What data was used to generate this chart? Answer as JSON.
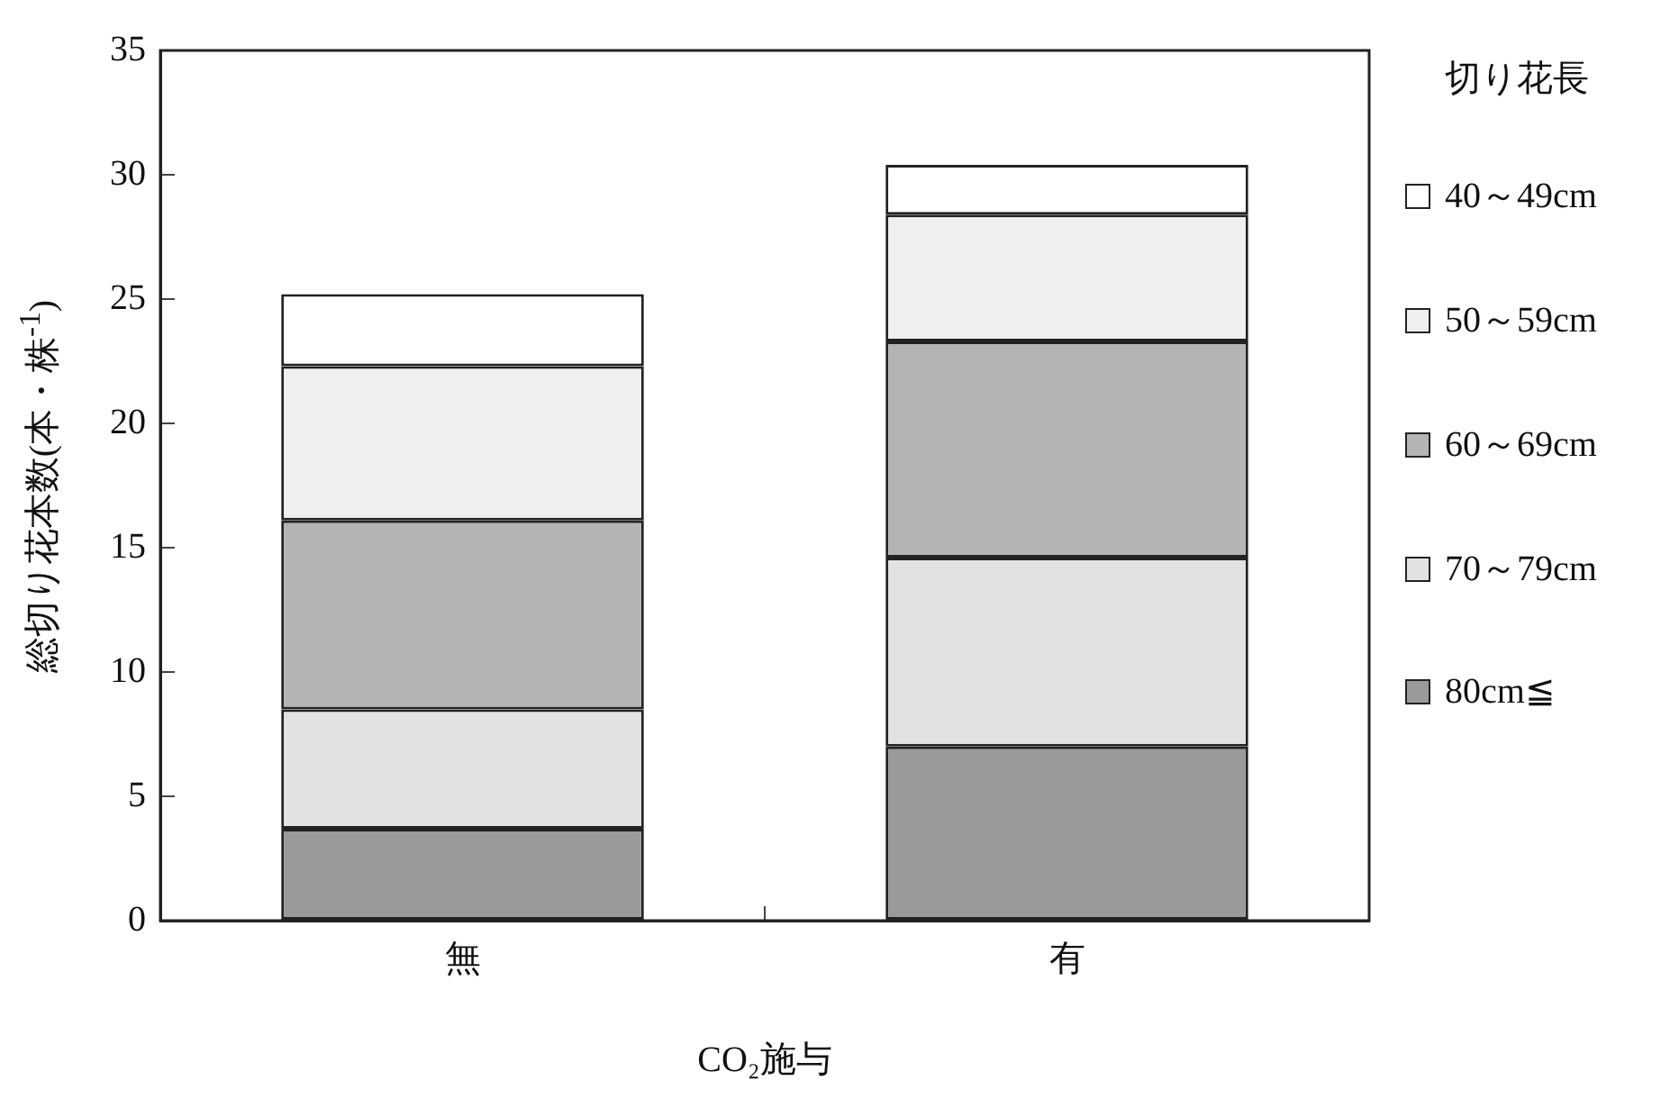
{
  "chart_data": {
    "type": "bar",
    "stacked": true,
    "xlabel": "CO₂施与",
    "ylabel": "総切り花本数(本・株$^{-1}$)",
    "legend_title": "切り花長",
    "legend": "right",
    "categories": [
      "無",
      "有"
    ],
    "ylim": [
      0,
      35
    ],
    "yticks": [
      0,
      5,
      10,
      15,
      20,
      25,
      30,
      35
    ],
    "grid": false,
    "series": [
      {
        "name": "80cm≦",
        "color": "#9a9a9a",
        "values": [
          3.7,
          7.0
        ]
      },
      {
        "name": "70～79cm",
        "color": "#e2e2e2",
        "values": [
          4.8,
          7.6
        ]
      },
      {
        "name": "60～69cm",
        "color": "#b4b4b4",
        "values": [
          7.6,
          8.7
        ]
      },
      {
        "name": "50～59cm",
        "color": "#efefef",
        "values": [
          6.2,
          5.1
        ]
      },
      {
        "name": "40～49cm",
        "color": "#ffffff",
        "values": [
          2.9,
          2.0
        ]
      }
    ]
  }
}
